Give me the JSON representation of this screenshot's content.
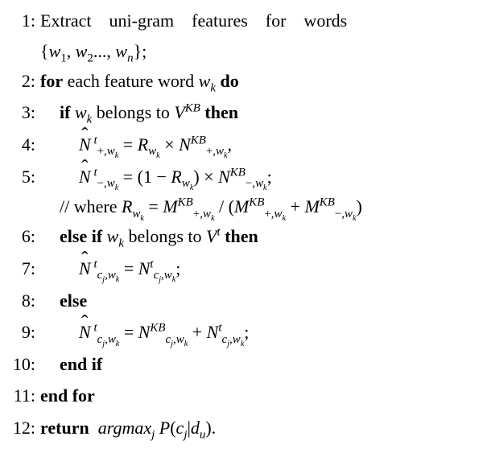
{
  "font_family": "Times New Roman",
  "font_size_pt": 22,
  "text_color": "#000000",
  "background_color": "#ffffff",
  "lines": [
    {
      "n": "1:",
      "indent": 0,
      "html": "Extract&nbsp;&nbsp;&nbsp;&nbsp;uni-gram&nbsp;&nbsp;&nbsp;&nbsp;features&nbsp;&nbsp;&nbsp;&nbsp;for&nbsp;&nbsp;&nbsp;&nbsp;words",
      "cont": "{<span class='it'>w</span><sub>1</sub>, <span class='it'>w</span><sub>2</sub>..., <span class='it'>w</span><sub><span class='it'>n</span></sub>};"
    },
    {
      "n": "2:",
      "indent": 0,
      "html": "<span class='bold'>for</span> each feature word <span class='it'>w</span><sub><span class='it'>k</span></sub> <span class='bold'>do</span>"
    },
    {
      "n": "3:",
      "indent": 1,
      "html": "<span class='bold'>if</span> <span class='it'>w</span><sub><span class='it'>k</span></sub> belongs to <span class='it'>V</span><sup><span class='it'>KB</span></sup> <span class='bold'>then</span>"
    },
    {
      "n": "4:",
      "indent": 2,
      "html": "<span class='hat it'>N</span><sup>&nbsp;<span class='it'>t</span></sup><sub>+,<span class='it'>w</span><sub><span class='it'>k</span></sub></sub> = <span class='it'>R</span><sub><span class='it'>w</span><sub><span class='it'>k</span></sub></sub> &times; <span class='it'>N</span><sup><span class='it'>KB</span></sup><sub>+,<span class='it'>w</span><sub><span class='it'>k</span></sub></sub>,"
    },
    {
      "n": "5:",
      "indent": 2,
      "html": "<span class='hat it'>N</span><sup>&nbsp;<span class='it'>t</span></sup><sub>&minus;,<span class='it'>w</span><sub><span class='it'>k</span></sub></sub> = (1 &minus; <span class='it'>R</span><sub><span class='it'>w</span><sub><span class='it'>k</span></sub></sub>) &times; <span class='it'>N</span><sup><span class='it'>KB</span></sup><sub>&minus;,<span class='it'>w</span><sub><span class='it'>k</span></sub></sub>;",
      "cont_indent": 1,
      "cont": "// where <span class='it'>R</span><sub><span class='it'>w</span><sub><span class='it'>k</span></sub></sub> = <span class='it'>M</span><sup><span class='it'>KB</span></sup><sub>+,<span class='it'>w</span><sub><span class='it'>k</span></sub></sub> / (<span class='it'>M</span><sup><span class='it'>KB</span></sup><sub>+,<span class='it'>w</span><sub><span class='it'>k</span></sub></sub> + <span class='it'>M</span><sup><span class='it'>KB</span></sup><sub>&minus;,<span class='it'>w</span><sub><span class='it'>k</span></sub></sub>)"
    },
    {
      "n": "6:",
      "indent": 1,
      "html": "<span class='bold'>else if</span> <span class='it'>w</span><sub><span class='it'>k</span></sub> belongs to <span class='it'>V</span><sup><span class='it'>t</span></sup> <span class='bold'>then</span>"
    },
    {
      "n": "7:",
      "indent": 2,
      "html": "<span class='hat it'>N</span><sup>&nbsp;<span class='it'>t</span></sup><sub><span class='it'>c</span><sub><span class='it'>j</span></sub>,<span class='it'>w</span><sub><span class='it'>k</span></sub></sub> = <span class='it'>N</span><sup><span class='it'>t</span></sup><sub><span class='it'>c</span><sub><span class='it'>j</span></sub>,<span class='it'>w</span><sub><span class='it'>k</span></sub></sub>;"
    },
    {
      "n": "8:",
      "indent": 1,
      "html": "<span class='bold'>else</span>"
    },
    {
      "n": "9:",
      "indent": 2,
      "html": "<span class='hat it'>N</span><sup>&nbsp;<span class='it'>t</span></sup><sub><span class='it'>c</span><sub><span class='it'>j</span></sub>,<span class='it'>w</span><sub><span class='it'>k</span></sub></sub> = <span class='it'>N</span><sup><span class='it'>KB</span></sup><sub><span class='it'>c</span><sub><span class='it'>j</span></sub>,<span class='it'>w</span><sub><span class='it'>k</span></sub></sub> + <span class='it'>N</span><sup><span class='it'>t</span></sup><sub><span class='it'>c</span><sub><span class='it'>j</span></sub>,<span class='it'>w</span><sub><span class='it'>k</span></sub></sub>;"
    },
    {
      "n": "10:",
      "indent": 1,
      "html": "<span class='bold'>end if</span>"
    },
    {
      "n": "11:",
      "indent": 0,
      "html": "<span class='bold'>end for</span>"
    },
    {
      "n": "12:",
      "indent": 0,
      "html": "<span class='bold'>return</span>&nbsp;&nbsp;<span class='it'>argmax</span><sub><span class='it'>j</span></sub> <span class='it'>P</span>(<span class='it'>c</span><sub><span class='it'>j</span></sub>|<span class='it'>d</span><sub><span class='it'>u</span></sub>)."
    }
  ]
}
